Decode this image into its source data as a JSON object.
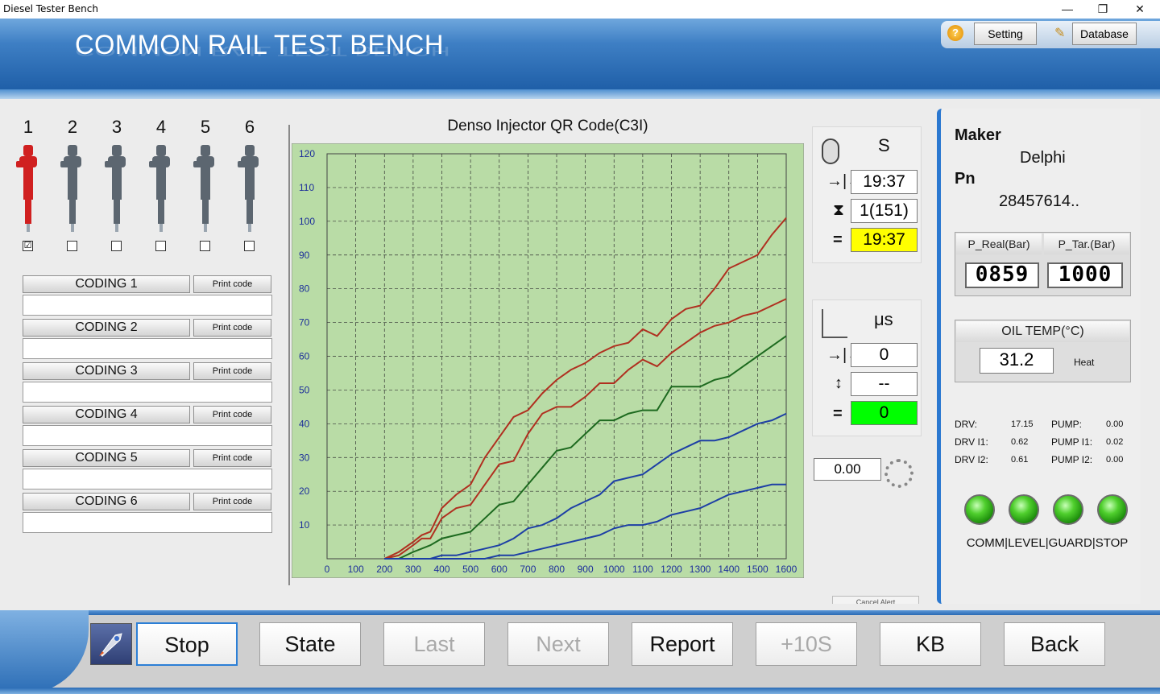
{
  "window": {
    "title": "Diesel Tester Bench",
    "min": "—",
    "max": "❐",
    "close": "✕"
  },
  "header": {
    "title": "COMMON RAIL TEST BENCH",
    "help_icon": "?",
    "setting_label": "Setting",
    "database_label": "Database"
  },
  "injectors": [
    {
      "num": "1",
      "checked": "☑",
      "color": "#d02020"
    },
    {
      "num": "2",
      "checked": "",
      "color": "#5c6670"
    },
    {
      "num": "3",
      "checked": "",
      "color": "#5c6670"
    },
    {
      "num": "4",
      "checked": "",
      "color": "#5c6670"
    },
    {
      "num": "5",
      "checked": "",
      "color": "#5c6670"
    },
    {
      "num": "6",
      "checked": "",
      "color": "#5c6670"
    }
  ],
  "coding": [
    {
      "label": "CODING 1",
      "print": "Print code",
      "value": ""
    },
    {
      "label": "CODING 2",
      "print": "Print code",
      "value": ""
    },
    {
      "label": "CODING 3",
      "print": "Print code",
      "value": ""
    },
    {
      "label": "CODING 4",
      "print": "Print code",
      "value": ""
    },
    {
      "label": "CODING 5",
      "print": "Print code",
      "value": ""
    },
    {
      "label": "CODING 6",
      "print": "Print code",
      "value": ""
    }
  ],
  "chart_data": {
    "type": "line",
    "title": "Denso Injector QR Code(C3I)",
    "xlabel": "",
    "ylabel": "",
    "xlim": [
      0,
      1600
    ],
    "ylim": [
      0,
      120
    ],
    "xticks": [
      "0",
      "100",
      "200",
      "300",
      "400",
      "500",
      "600",
      "700",
      "800",
      "900",
      "1000",
      "1100",
      "1200",
      "1300",
      "1400",
      "1500",
      "1600"
    ],
    "yticks": [
      "10",
      "20",
      "30",
      "40",
      "50",
      "60",
      "70",
      "80",
      "90",
      "100",
      "110",
      "120"
    ],
    "grid": true,
    "background": "#b9dca6",
    "series": [
      {
        "color": "#b03020",
        "x": [
          200,
          250,
          300,
          330,
          360,
          400,
          450,
          500,
          550,
          600,
          650,
          700,
          750,
          800,
          850,
          900,
          950,
          1000,
          1050,
          1100,
          1150,
          1200,
          1250,
          1300,
          1350,
          1400,
          1450,
          1500,
          1550,
          1600
        ],
        "y": [
          0,
          2,
          5,
          7,
          8,
          15,
          19,
          22,
          30,
          36,
          42,
          44,
          49,
          53,
          56,
          58,
          61,
          63,
          64,
          68,
          66,
          71,
          74,
          75,
          80,
          86,
          88,
          90,
          96,
          101
        ]
      },
      {
        "color": "#b03020",
        "x": [
          200,
          250,
          300,
          330,
          360,
          400,
          450,
          500,
          550,
          600,
          650,
          700,
          750,
          800,
          850,
          900,
          950,
          1000,
          1050,
          1100,
          1150,
          1200,
          1250,
          1300,
          1350,
          1400,
          1450,
          1500,
          1550,
          1600
        ],
        "y": [
          0,
          1,
          4,
          6,
          6,
          12,
          15,
          16,
          22,
          28,
          29,
          37,
          43,
          45,
          45,
          48,
          52,
          52,
          56,
          59,
          57,
          61,
          64,
          67,
          69,
          70,
          72,
          73,
          75,
          77
        ]
      },
      {
        "color": "#1d6a1f",
        "x": [
          200,
          250,
          300,
          330,
          360,
          400,
          450,
          500,
          550,
          600,
          650,
          700,
          750,
          800,
          850,
          900,
          950,
          1000,
          1050,
          1100,
          1150,
          1200,
          1250,
          1300,
          1350,
          1400,
          1450,
          1500,
          1550,
          1600
        ],
        "y": [
          0,
          0,
          2,
          3,
          4,
          6,
          7,
          8,
          12,
          16,
          17,
          22,
          27,
          32,
          33,
          37,
          41,
          41,
          43,
          44,
          44,
          51,
          51,
          51,
          53,
          54,
          57,
          60,
          63,
          66
        ]
      },
      {
        "color": "#1d3fa5",
        "x": [
          200,
          250,
          300,
          330,
          360,
          400,
          450,
          500,
          550,
          600,
          650,
          700,
          750,
          800,
          850,
          900,
          950,
          1000,
          1050,
          1100,
          1150,
          1200,
          1250,
          1300,
          1350,
          1400,
          1450,
          1500,
          1550,
          1600
        ],
        "y": [
          0,
          0,
          0,
          0,
          0,
          1,
          1,
          2,
          3,
          4,
          6,
          9,
          10,
          12,
          15,
          17,
          19,
          23,
          24,
          25,
          28,
          31,
          33,
          35,
          35,
          36,
          38,
          40,
          41,
          43
        ]
      },
      {
        "color": "#1d3fa5",
        "x": [
          200,
          250,
          300,
          330,
          360,
          400,
          450,
          500,
          550,
          600,
          650,
          700,
          750,
          800,
          850,
          900,
          950,
          1000,
          1050,
          1100,
          1150,
          1200,
          1250,
          1300,
          1350,
          1400,
          1450,
          1500,
          1550,
          1600
        ],
        "y": [
          0,
          0,
          0,
          0,
          0,
          0,
          0,
          0,
          0,
          1,
          1,
          2,
          3,
          4,
          5,
          6,
          7,
          9,
          10,
          10,
          11,
          13,
          14,
          15,
          17,
          19,
          20,
          21,
          22,
          22
        ]
      }
    ]
  },
  "timer": {
    "unit": "S",
    "row1_value": "19:37",
    "row2_value": "1(151)",
    "row3_value": "19:37",
    "row3_bg": "#ffff00",
    "eq": "="
  },
  "pulse": {
    "unit": "μs",
    "row1_value": "0",
    "row2_value": "--",
    "row3_value": "0",
    "row3_bg": "#00ff00",
    "eq": "="
  },
  "flow_value": "0.00",
  "cancel_label": "Cancel Alert",
  "right": {
    "maker_label": "Maker",
    "maker_value": "Delphi",
    "pn_label": "Pn",
    "pn_value": "28457614..",
    "p_real_label": "P_Real(Bar)",
    "p_tar_label": "P_Tar.(Bar)",
    "p_real_value": "0859",
    "p_tar_value": "1000",
    "oil_label": "OIL TEMP(°C)",
    "oil_value": "31.2",
    "heat_label": "Heat",
    "drv_label": "DRV:",
    "drv_value": "17.15",
    "drv_i1_label": "DRV I1:",
    "drv_i1_value": "0.62",
    "drv_i2_label": "DRV I2:",
    "drv_i2_value": "0.61",
    "pump_label": "PUMP:",
    "pump_value": "0.00",
    "pump_i1_label": "PUMP I1:",
    "pump_i1_value": "0.02",
    "pump_i2_label": "PUMP I2:",
    "pump_i2_value": "0.00",
    "status_label": "COMM|LEVEL|GUARD|STOP"
  },
  "bottom_buttons": {
    "stop": "Stop",
    "state": "State",
    "last": "Last",
    "next": "Next",
    "report": "Report",
    "plus10": "+10S",
    "kb": "KB",
    "back": "Back"
  }
}
